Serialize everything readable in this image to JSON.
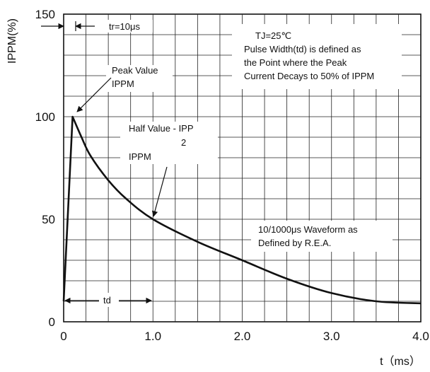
{
  "chart_data": {
    "type": "line",
    "title": "",
    "xlabel": "t（ms）",
    "ylabel": "IPPM(%)",
    "xlim": [
      0,
      4.0
    ],
    "ylim": [
      0,
      150
    ],
    "grid": true,
    "x_ticks": [
      0,
      1.0,
      2.0,
      3.0,
      4.0
    ],
    "x_tick_labels": [
      "0",
      "1.0",
      "2.0",
      "3.0",
      "4.0"
    ],
    "y_ticks": [
      0,
      50,
      100,
      150
    ],
    "y_tick_labels": [
      "0",
      "50",
      "100",
      "150"
    ],
    "series": [
      {
        "x": [
          0,
          0.1,
          0.2,
          0.3,
          0.5,
          0.7,
          1.0,
          1.5,
          2.0,
          2.5,
          3.0,
          3.5,
          4.0
        ],
        "y": [
          10,
          100,
          90,
          81,
          69,
          60,
          50,
          39,
          30,
          21,
          14,
          10,
          9
        ]
      }
    ],
    "annotations": {
      "rise_time": "tr=10μs",
      "conditions_line1": "TJ=25℃",
      "conditions_line2": "Pulse Width(td) is defined as",
      "conditions_line3": "the Point where the Peak",
      "conditions_line4": "Current Decays to 50% of IPPM",
      "peak_line1": "Peak Value",
      "peak_line2": "IPPM",
      "half_line1": "Half Value - IPP",
      "half_sub": "2",
      "half_line2": "IPPM",
      "waveform_line1": "10/1000μs Waveform as",
      "waveform_line2": "Defined by R.E.A.",
      "td_label": "td"
    }
  }
}
